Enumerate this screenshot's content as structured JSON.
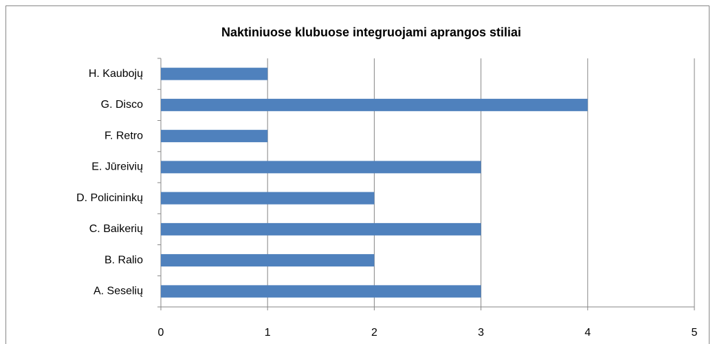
{
  "chart_data": {
    "type": "barh",
    "title": "Naktiniuose klubuose integruojami aprangos stiliai",
    "categories": [
      "A. Seselių",
      "B. Ralio",
      "C. Baikerių",
      "D. Policininkų",
      "E. Jūreivių",
      "F. Retro",
      "G. Disco",
      "H. Kaubojų"
    ],
    "values": [
      3,
      2,
      3,
      2,
      3,
      1,
      4,
      1
    ],
    "color": "#4f81bd",
    "xlim": [
      0,
      5
    ],
    "xticks": [
      0,
      1,
      2,
      3,
      4,
      5
    ],
    "grid": true
  }
}
